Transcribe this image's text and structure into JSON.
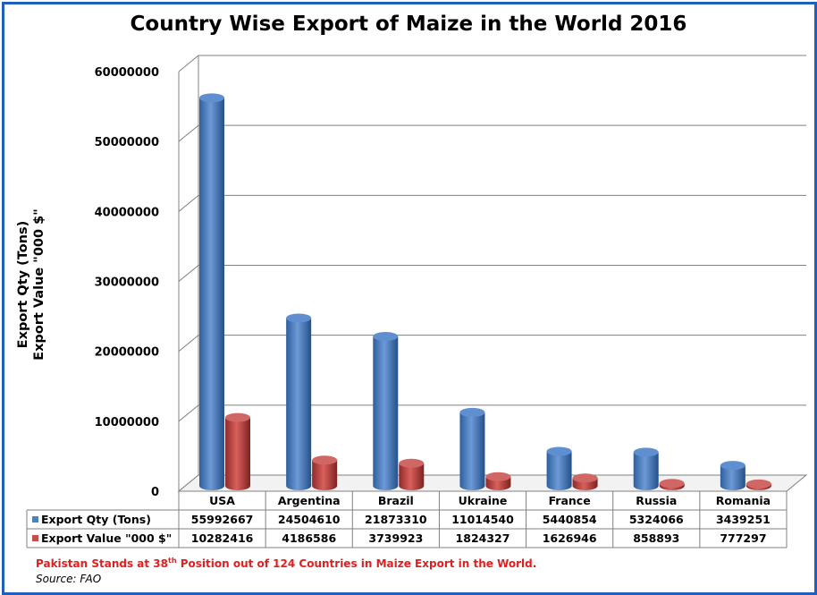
{
  "chart_data": {
    "type": "bar",
    "title": "Country Wise Export of Maize in the World 2016",
    "ylabel_line1": "Export Qty (Tons)",
    "ylabel_line2": "Export Value \"000 $\"",
    "ylim": [
      0,
      60000000
    ],
    "yticks": [
      "0",
      "10000000",
      "20000000",
      "30000000",
      "40000000",
      "50000000",
      "60000000"
    ],
    "categories": [
      "USA",
      "Argentina",
      "Brazil",
      "Ukraine",
      "France",
      "Russia",
      "Romania"
    ],
    "series": [
      {
        "name": "Export Qty (Tons)",
        "color": "#4f81bd",
        "values": [
          55992667,
          24504610,
          21873310,
          11014540,
          5440854,
          5324066,
          3439251
        ],
        "labels": [
          "55992667",
          "24504610",
          "21873310",
          "11014540",
          "5440854",
          "5324066",
          "3439251"
        ]
      },
      {
        "name": "Export Value \"000 $\"",
        "color": "#c0504d",
        "values": [
          10282416,
          4186586,
          3739923,
          1824327,
          1626946,
          858893,
          777297
        ],
        "labels": [
          "10282416",
          "4186586",
          "3739923",
          "1824327",
          "1626946",
          "858893",
          "777297"
        ]
      }
    ],
    "grid": true,
    "legend": "data-table"
  },
  "footnote": {
    "before": "Pakistan Stands at 38",
    "sup": "th",
    "after": " Position out of 124 Countries in Maize Export in the World."
  },
  "source": "Source: FAO"
}
